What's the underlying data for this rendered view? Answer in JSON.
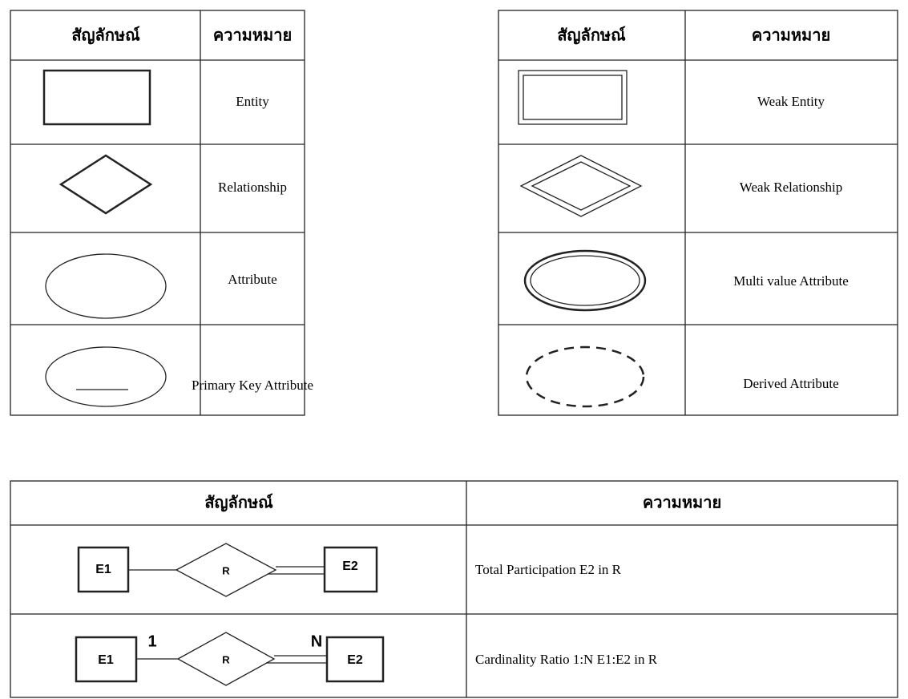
{
  "top_left_table": {
    "header": [
      "สัญลักษณ์",
      "ความหมาย"
    ],
    "rows": [
      "Entity",
      "Relationship",
      "Attribute",
      "Primary Key Attribute"
    ]
  },
  "top_right_table": {
    "header": [
      "สัญลักษณ์",
      "ความหมาย"
    ],
    "rows": [
      "Weak Entity",
      "Weak Relationship",
      "Multi value Attribute",
      "Derived Attribute"
    ]
  },
  "bottom_table": {
    "header": [
      "สัญลักษณ์",
      "ความหมาย"
    ],
    "rows": [
      {
        "diagram": {
          "left": "E1",
          "relation": "R",
          "right": "E2"
        },
        "meaning": "Total Participation  E2 in R"
      },
      {
        "diagram": {
          "left": "E1",
          "left_cardinality": "1",
          "relation": "R",
          "right_cardinality": "N",
          "right": "E2"
        },
        "meaning": "Cardinality Ratio 1:N   E1:E2  in R"
      }
    ]
  }
}
